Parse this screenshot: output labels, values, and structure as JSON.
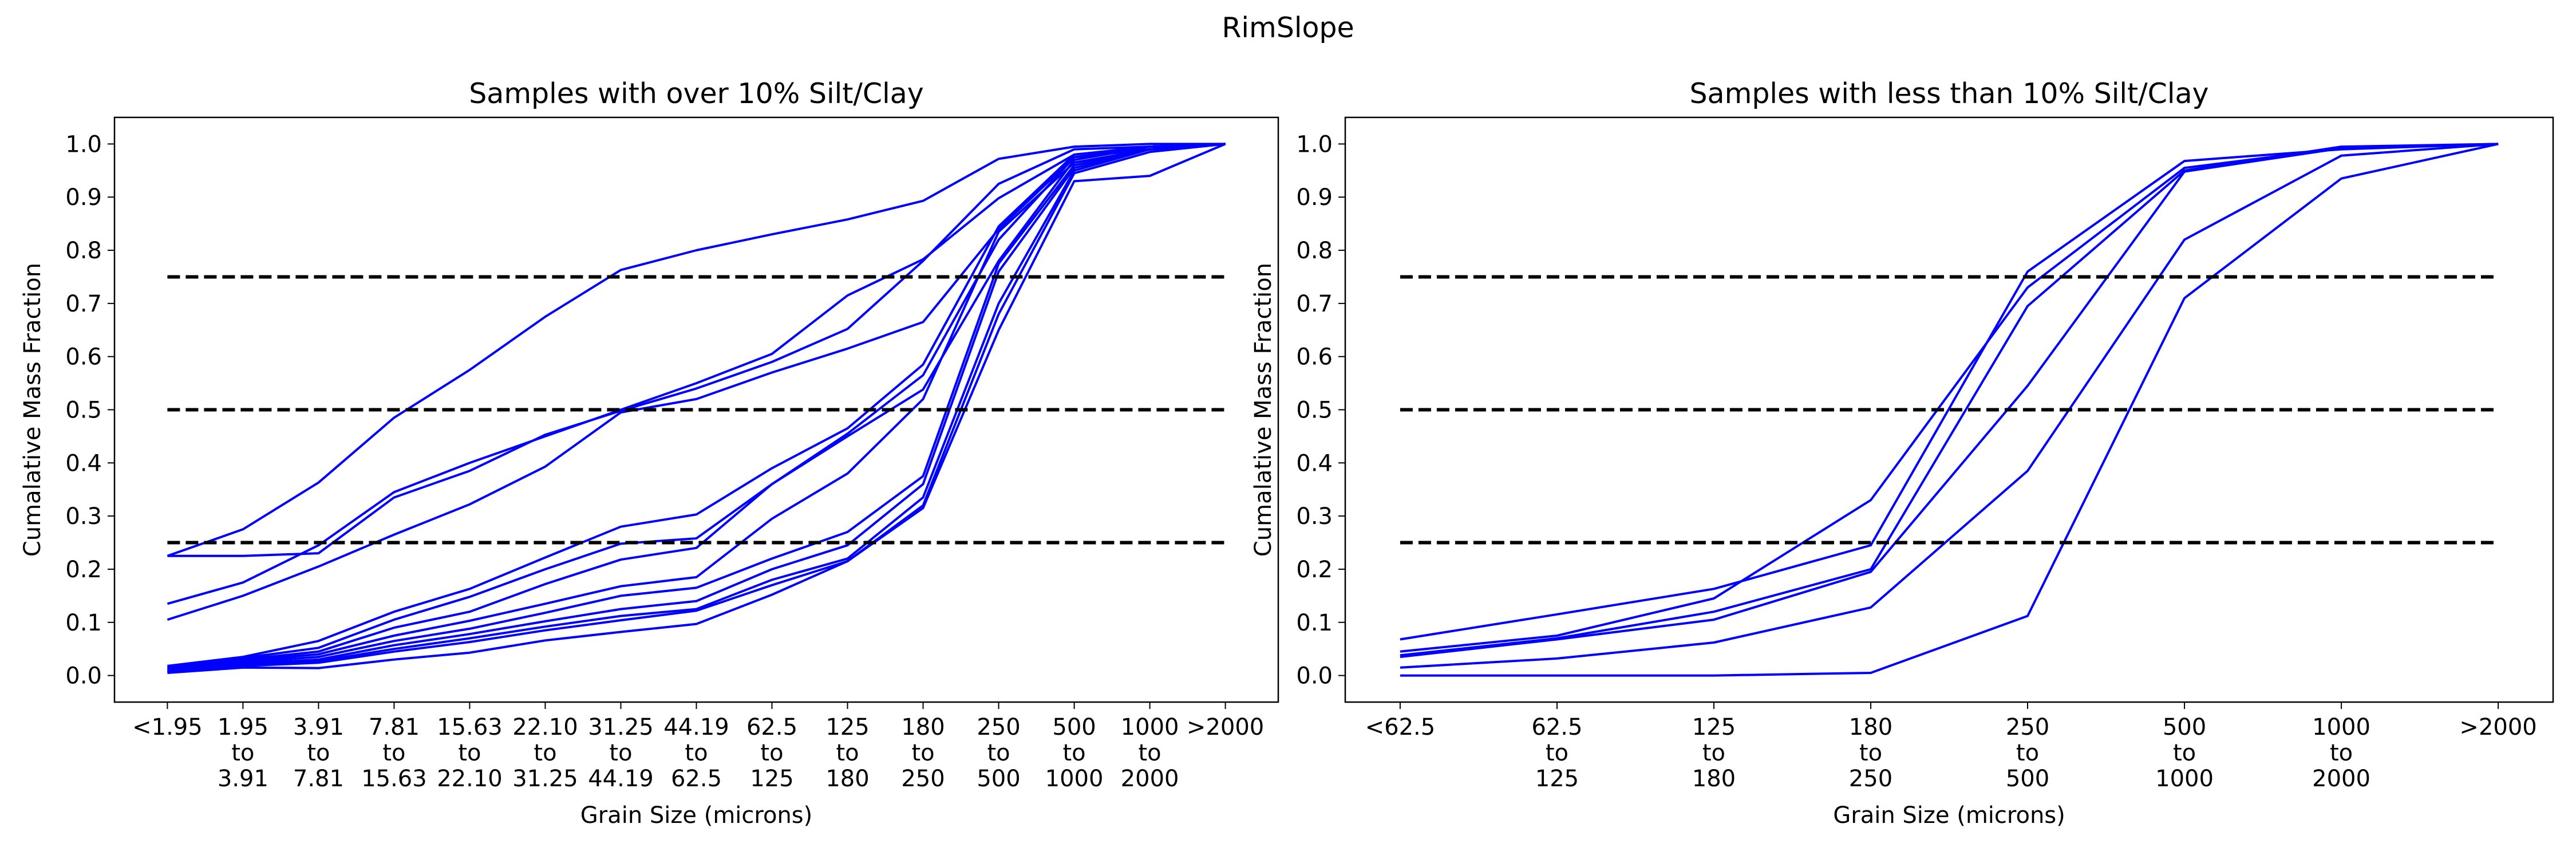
{
  "suptitle": "RimSlope",
  "chart_data": [
    {
      "type": "line",
      "title": "Samples with over 10% Silt/Clay",
      "xlabel": "Grain Size (microns)",
      "ylabel": "Cumalative Mass Fraction",
      "ylim": [
        -0.05,
        1.05
      ],
      "yticks": [
        0.0,
        0.1,
        0.2,
        0.3,
        0.4,
        0.5,
        0.6,
        0.7,
        0.8,
        0.9,
        1.0
      ],
      "categories": [
        "<1.95",
        "1.95\nto\n3.91",
        "3.91\nto\n7.81",
        "7.81\nto\n15.63",
        "15.63\nto\n22.10",
        "22.10\nto\n31.25",
        "31.25\nto\n44.19",
        "44.19\nto\n62.5",
        "62.5\nto\n125",
        "125\nto\n180",
        "180\nto\n250",
        "250\nto\n500",
        "500\nto\n1000",
        "1000\nto\n2000",
        ">2000"
      ],
      "reference_lines": [
        0.25,
        0.5,
        0.75
      ],
      "line_color": "#0000ff",
      "ref_color": "#000000",
      "series": [
        {
          "values": [
            0.225,
            0.275,
            0.363,
            0.485,
            0.575,
            0.675,
            0.763,
            0.8,
            0.83,
            0.858,
            0.893,
            0.972,
            0.995,
            1.0,
            1.0
          ]
        },
        {
          "values": [
            0.225,
            0.225,
            0.23,
            0.335,
            0.385,
            0.453,
            0.498,
            0.54,
            0.59,
            0.652,
            0.78,
            0.925,
            0.99,
            0.995,
            1.0
          ]
        },
        {
          "values": [
            0.135,
            0.175,
            0.245,
            0.345,
            0.4,
            0.45,
            0.5,
            0.55,
            0.605,
            0.715,
            0.783,
            0.898,
            0.98,
            0.995,
            1.0
          ]
        },
        {
          "values": [
            0.105,
            0.15,
            0.205,
            0.265,
            0.322,
            0.393,
            0.495,
            0.52,
            0.57,
            0.615,
            0.665,
            0.84,
            0.975,
            0.99,
            1.0
          ]
        },
        {
          "values": [
            0.018,
            0.035,
            0.065,
            0.12,
            0.163,
            0.222,
            0.28,
            0.303,
            0.39,
            0.465,
            0.585,
            0.845,
            0.98,
            0.995,
            1.0
          ]
        },
        {
          "values": [
            0.015,
            0.033,
            0.052,
            0.105,
            0.148,
            0.2,
            0.248,
            0.258,
            0.36,
            0.455,
            0.565,
            0.82,
            0.975,
            0.995,
            1.0
          ]
        },
        {
          "values": [
            0.013,
            0.03,
            0.045,
            0.09,
            0.12,
            0.172,
            0.218,
            0.24,
            0.36,
            0.45,
            0.538,
            0.78,
            0.97,
            0.995,
            1.0
          ]
        },
        {
          "values": [
            0.012,
            0.028,
            0.04,
            0.075,
            0.103,
            0.135,
            0.168,
            0.185,
            0.295,
            0.38,
            0.52,
            0.835,
            0.965,
            0.99,
            1.0
          ]
        },
        {
          "values": [
            0.01,
            0.025,
            0.035,
            0.065,
            0.088,
            0.118,
            0.15,
            0.165,
            0.22,
            0.27,
            0.375,
            0.775,
            0.96,
            0.99,
            1.0
          ]
        },
        {
          "values": [
            0.008,
            0.022,
            0.03,
            0.057,
            0.078,
            0.102,
            0.125,
            0.14,
            0.2,
            0.245,
            0.36,
            0.76,
            0.955,
            0.99,
            1.0
          ]
        },
        {
          "values": [
            0.007,
            0.02,
            0.027,
            0.05,
            0.07,
            0.092,
            0.112,
            0.125,
            0.18,
            0.22,
            0.335,
            0.7,
            0.95,
            0.99,
            1.0
          ]
        },
        {
          "values": [
            0.006,
            0.018,
            0.024,
            0.045,
            0.063,
            0.085,
            0.104,
            0.122,
            0.17,
            0.215,
            0.32,
            0.68,
            0.945,
            0.985,
            1.0
          ]
        },
        {
          "values": [
            0.005,
            0.015,
            0.014,
            0.03,
            0.043,
            0.066,
            0.082,
            0.097,
            0.152,
            0.215,
            0.315,
            0.65,
            0.93,
            0.94,
            1.0
          ]
        }
      ]
    },
    {
      "type": "line",
      "title": "Samples with less than 10% Silt/Clay",
      "xlabel": "Grain Size (microns)",
      "ylabel": "Cumalative Mass Fraction",
      "ylim": [
        -0.05,
        1.05
      ],
      "yticks": [
        0.0,
        0.1,
        0.2,
        0.3,
        0.4,
        0.5,
        0.6,
        0.7,
        0.8,
        0.9,
        1.0
      ],
      "categories": [
        "<62.5",
        "62.5\nto\n125",
        "125\nto\n180",
        "180\nto\n250",
        "250\nto\n500",
        "500\nto\n1000",
        "1000\nto\n2000",
        ">2000"
      ],
      "reference_lines": [
        0.25,
        0.5,
        0.75
      ],
      "line_color": "#0000ff",
      "ref_color": "#000000",
      "series": [
        {
          "values": [
            0.068,
            0.115,
            0.163,
            0.245,
            0.76,
            0.968,
            0.99,
            1.0
          ]
        },
        {
          "values": [
            0.045,
            0.075,
            0.145,
            0.33,
            0.73,
            0.955,
            0.992,
            1.0
          ]
        },
        {
          "values": [
            0.038,
            0.07,
            0.12,
            0.2,
            0.695,
            0.95,
            0.995,
            1.0
          ]
        },
        {
          "values": [
            0.035,
            0.068,
            0.105,
            0.195,
            0.545,
            0.948,
            0.992,
            1.0
          ]
        },
        {
          "values": [
            0.015,
            0.032,
            0.062,
            0.128,
            0.385,
            0.82,
            0.978,
            1.0
          ]
        },
        {
          "values": [
            0.0,
            0.0,
            0.0,
            0.005,
            0.112,
            0.71,
            0.935,
            1.0
          ]
        }
      ]
    }
  ]
}
